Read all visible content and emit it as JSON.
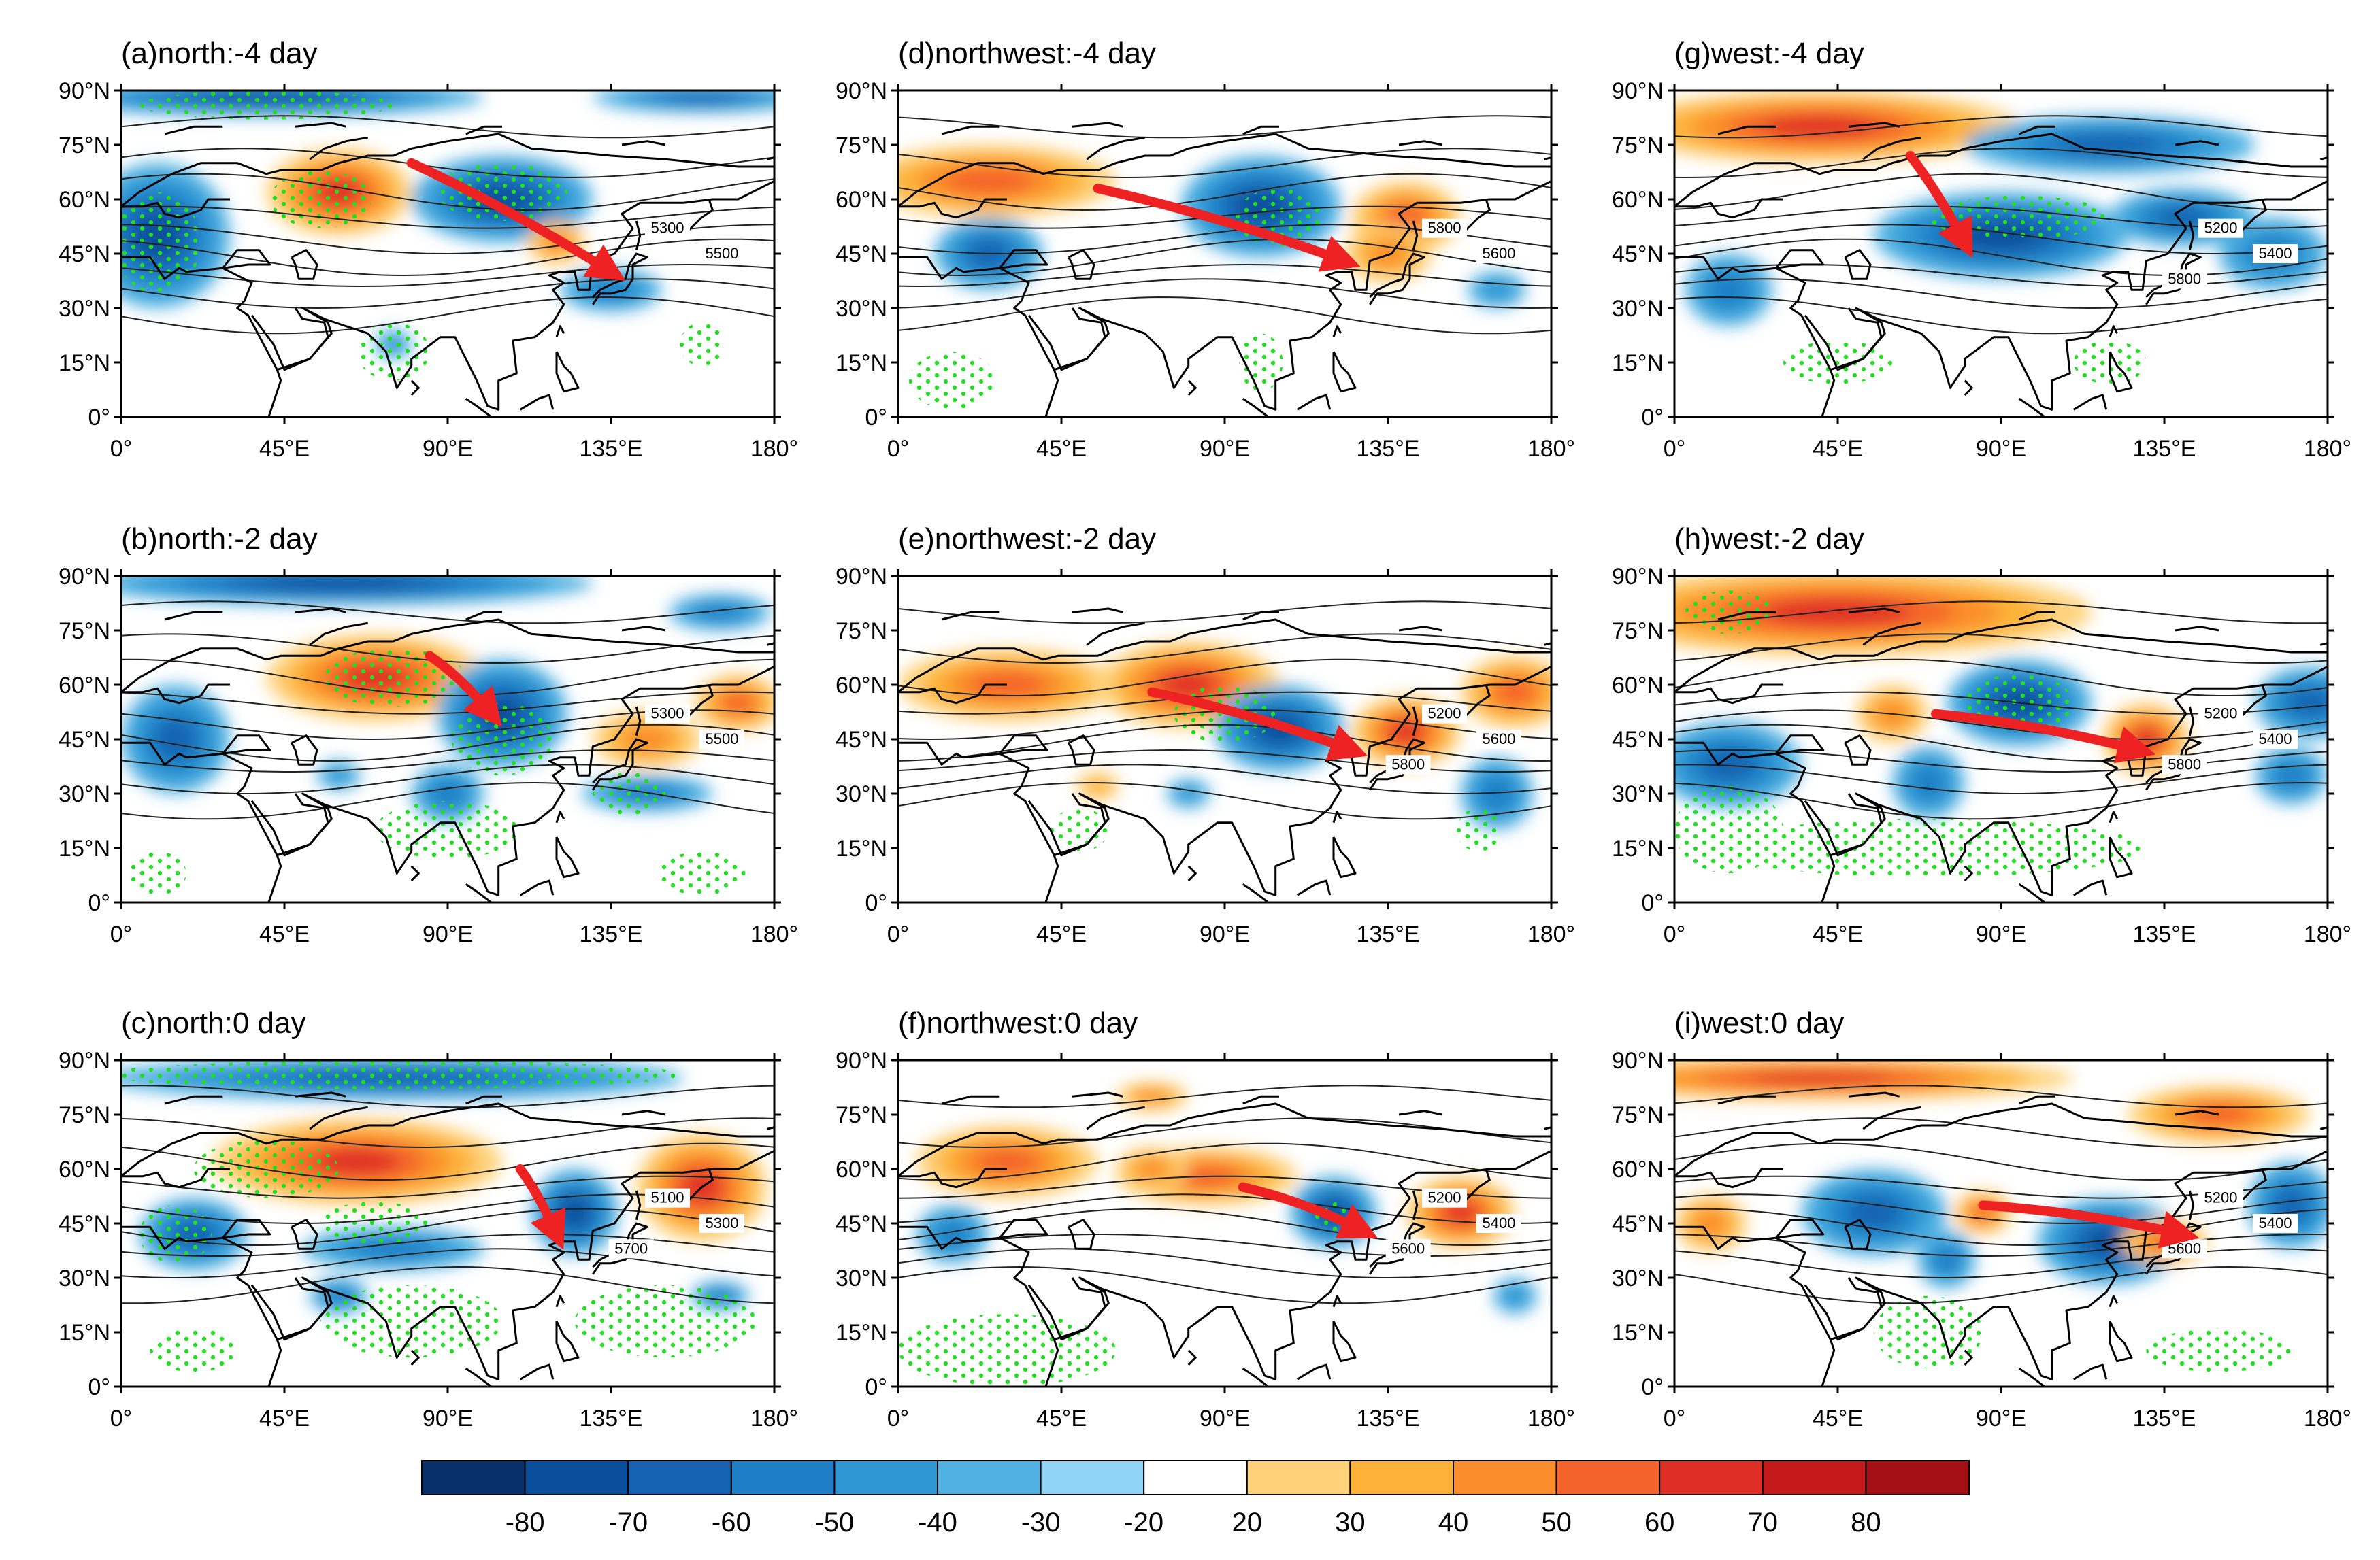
{
  "panels": [
    {
      "id": "a",
      "title": "(a)north:-4 day",
      "contour_labels": [
        "5300",
        "5500"
      ]
    },
    {
      "id": "b",
      "title": "(b)north:-2 day",
      "contour_labels": [
        "5300",
        "5500"
      ]
    },
    {
      "id": "c",
      "title": "(c)north:0 day",
      "contour_labels": [
        "5100",
        "5300",
        "5700"
      ]
    },
    {
      "id": "d",
      "title": "(d)northwest:-4 day",
      "contour_labels": [
        "5800",
        "5600"
      ]
    },
    {
      "id": "e",
      "title": "(e)northwest:-2 day",
      "contour_labels": [
        "5200",
        "5600",
        "5800"
      ]
    },
    {
      "id": "f",
      "title": "(f)northwest:0 day",
      "contour_labels": [
        "5200",
        "5400",
        "5600"
      ]
    },
    {
      "id": "g",
      "title": "(g)west:-4 day",
      "contour_labels": [
        "5200",
        "5400",
        "5800"
      ]
    },
    {
      "id": "h",
      "title": "(h)west:-2 day",
      "contour_labels": [
        "5200",
        "5400",
        "5800"
      ]
    },
    {
      "id": "i",
      "title": "(i)west:0 day",
      "contour_labels": [
        "5200",
        "5400",
        "5600"
      ]
    }
  ],
  "axes": {
    "lat_ticks": [
      "0°",
      "15°N",
      "30°N",
      "45°N",
      "60°N",
      "75°N",
      "90°N"
    ],
    "lon_ticks": [
      "0°",
      "45°E",
      "90°E",
      "135°E",
      "180°"
    ],
    "lat_range": [
      0,
      90
    ],
    "lon_range": [
      0,
      180
    ]
  },
  "colorbar": {
    "labels": [
      "-80",
      "-70",
      "-60",
      "-50",
      "-40",
      "-30",
      "-20",
      "20",
      "30",
      "40",
      "50",
      "60",
      "70",
      "80"
    ],
    "colors": [
      "#08306b",
      "#0b4f9c",
      "#1563b0",
      "#1f7fc6",
      "#2f97d4",
      "#4fb1e2",
      "#8fd3f5",
      "#ffffff",
      "#ffd27a",
      "#fdb237",
      "#fb8e2b",
      "#f4642a",
      "#df2f25",
      "#c41a1c",
      "#a40f14"
    ]
  },
  "colors": {
    "stipple": "#22dd22",
    "arrow": "#ee2222",
    "contour": "#222222",
    "coast": "#000000"
  }
}
